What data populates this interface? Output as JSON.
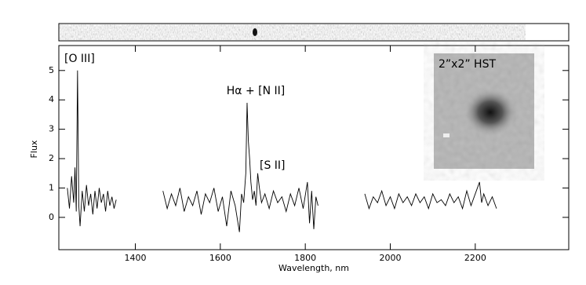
{
  "chart_data": {
    "type": "line",
    "xlabel": "Wavelength, nm",
    "ylabel": "Flux",
    "annotations": [
      "[O III]",
      "Hα + [N II]",
      "[S II]"
    ],
    "inset_label": "2”x2” HST",
    "color": "#000000",
    "x": [
      1240,
      1245,
      1250,
      1255,
      1258,
      1261,
      1264,
      1267,
      1270,
      1275,
      1280,
      1285,
      1290,
      1295,
      1300,
      1305,
      1310,
      1315,
      1320,
      1325,
      1330,
      1335,
      1340,
      1345,
      1350,
      1355,
      1410,
      1465,
      1475,
      1485,
      1495,
      1505,
      1515,
      1525,
      1535,
      1545,
      1555,
      1565,
      1575,
      1585,
      1595,
      1605,
      1615,
      1625,
      1635,
      1645,
      1650,
      1655,
      1660,
      1663,
      1666,
      1669,
      1672,
      1676,
      1680,
      1684,
      1688,
      1692,
      1697,
      1705,
      1715,
      1725,
      1735,
      1745,
      1755,
      1765,
      1775,
      1785,
      1795,
      1805,
      1810,
      1815,
      1820,
      1825,
      1830,
      1885,
      1940,
      1950,
      1960,
      1970,
      1980,
      1990,
      2000,
      2010,
      2020,
      2030,
      2040,
      2050,
      2060,
      2070,
      2080,
      2090,
      2100,
      2110,
      2120,
      2130,
      2140,
      2150,
      2160,
      2170,
      2180,
      2190,
      2200,
      2210,
      2215,
      2220,
      2230,
      2240,
      2250
    ],
    "values": [
      1.0,
      0.3,
      1.4,
      0.5,
      1.7,
      0.2,
      5.0,
      0.4,
      -0.3,
      0.9,
      0.2,
      1.1,
      0.4,
      0.8,
      0.1,
      0.9,
      0.3,
      1.0,
      0.5,
      0.8,
      0.2,
      0.9,
      0.4,
      0.7,
      0.3,
      0.6,
      null,
      0.9,
      0.3,
      0.8,
      0.4,
      1.0,
      0.2,
      0.7,
      0.4,
      0.9,
      0.1,
      0.8,
      0.5,
      1.0,
      0.2,
      0.7,
      -0.3,
      0.9,
      0.4,
      -0.5,
      0.8,
      0.5,
      1.5,
      3.9,
      2.6,
      2.0,
      1.2,
      0.6,
      0.9,
      0.4,
      1.5,
      1.0,
      0.5,
      0.8,
      0.3,
      0.9,
      0.5,
      0.7,
      0.2,
      0.8,
      0.4,
      1.0,
      0.3,
      1.2,
      -0.2,
      0.9,
      -0.4,
      0.7,
      0.4,
      null,
      0.8,
      0.3,
      0.7,
      0.5,
      0.9,
      0.4,
      0.7,
      0.3,
      0.8,
      0.5,
      0.7,
      0.4,
      0.8,
      0.5,
      0.7,
      0.3,
      0.8,
      0.5,
      0.6,
      0.4,
      0.8,
      0.5,
      0.7,
      0.3,
      0.9,
      0.4,
      0.8,
      1.2,
      0.5,
      0.8,
      0.4,
      0.7,
      0.3
    ],
    "xlim": [
      1220,
      2420
    ],
    "ylim": [
      -1.1,
      5.85
    ],
    "xticks": [
      1400,
      1600,
      1800,
      2000,
      2200
    ],
    "yticks": [
      0,
      1,
      2,
      3,
      4,
      5
    ]
  }
}
